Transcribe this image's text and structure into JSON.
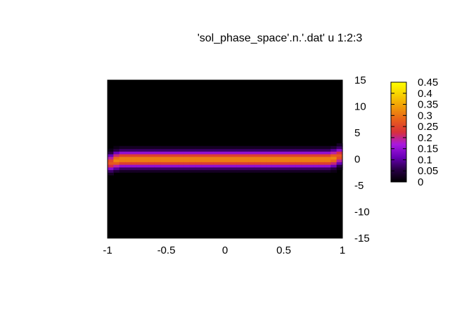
{
  "chart_data": {
    "type": "heatmap",
    "title": "'sol_phase_space'.n.'.dat' u 1:2:3",
    "xlabel": "",
    "ylabel": "",
    "xlim": [
      -1,
      1
    ],
    "ylim": [
      -15,
      15
    ],
    "x_ticks": [
      "-1",
      "-0.5",
      "0",
      "0.5",
      "1"
    ],
    "y_ticks": [
      "15",
      "10",
      "5",
      "0",
      "-5",
      "-10",
      "-15"
    ],
    "y_axis_side": "right",
    "colorbar": {
      "range": [
        0,
        0.45
      ],
      "ticks": [
        "0.45",
        "0.4",
        "0.35",
        "0.3",
        "0.25",
        "0.2",
        "0.15",
        "0.1",
        "0.05",
        "0"
      ],
      "palette": [
        "#000000",
        "#2a0048",
        "#6a00b8",
        "#a818e0",
        "#d8303a",
        "#e8601a",
        "#f09a08",
        "#f8d000",
        "#ffff00"
      ]
    },
    "band": {
      "center_y": 0,
      "peak_value": 0.32,
      "half_width_y": 1.8,
      "edge_bend_y": 0.8
    },
    "grid": false,
    "legend": "none"
  }
}
